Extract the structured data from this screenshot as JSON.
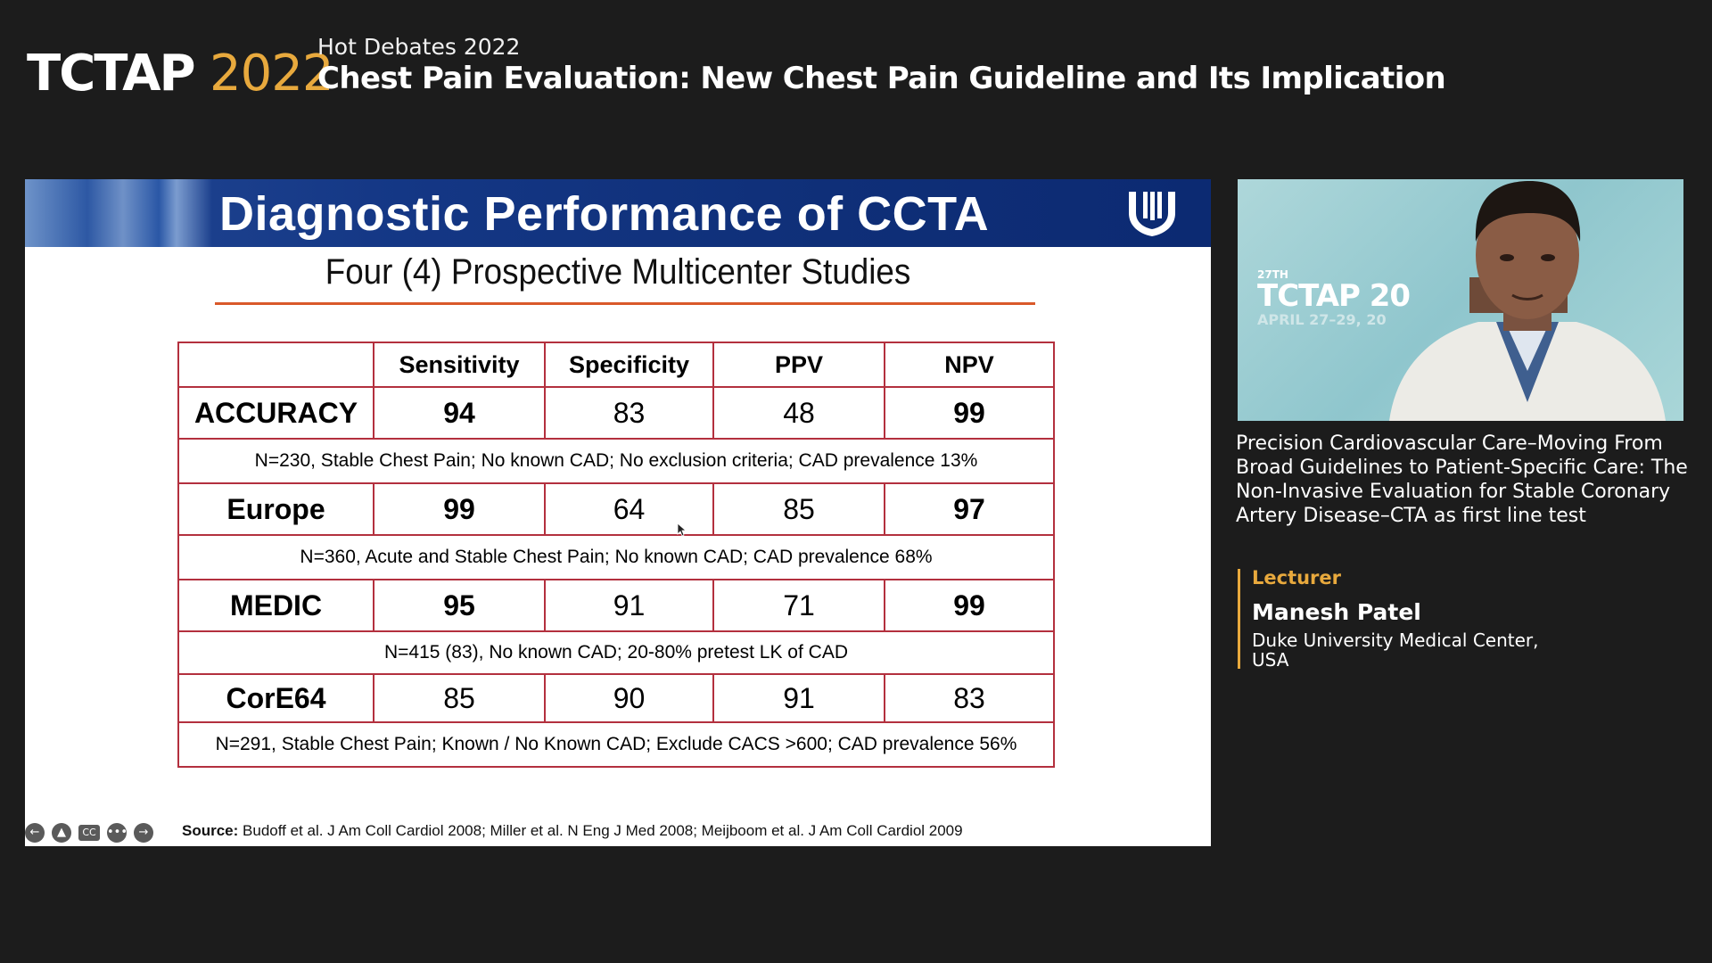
{
  "header": {
    "brand_name": "TCTAP",
    "brand_year": "2022",
    "session_kicker": "Hot Debates 2022",
    "session_title": "Chest Pain Evaluation: New Chest Pain Guideline and Its Implication"
  },
  "slide": {
    "title": "Diagnostic Performance of CCTA",
    "subtitle": "Four (4) Prospective Multicenter Studies",
    "columns": [
      "",
      "Sensitivity",
      "Specificity",
      "PPV",
      "NPV"
    ],
    "studies": [
      {
        "name": "ACCURACY",
        "values": [
          "94",
          "83",
          "48",
          "99"
        ],
        "note": "N=230, Stable Chest Pain; No known CAD; No exclusion criteria; CAD prevalence 13%"
      },
      {
        "name": "Europe",
        "values": [
          "99",
          "64",
          "85",
          "97"
        ],
        "note": "N=360, Acute and Stable Chest Pain; No known CAD; CAD prevalence 68%"
      },
      {
        "name": "MEDIC",
        "values": [
          "95",
          "91",
          "71",
          "99"
        ],
        "note": "N=415 (83), No known CAD; 20-80% pretest LK of CAD"
      },
      {
        "name": "CorE64",
        "values": [
          "85",
          "90",
          "91",
          "83"
        ],
        "note": "N=291, Stable Chest Pain; Known / No Known CAD; Exclude CACS >600; CAD prevalence 56%"
      }
    ],
    "source_label": "Source:",
    "source_text": " Budoff et al. J Am Coll Cardiol 2008; Miller et al. N Eng J Med 2008; Meijboom et al. J Am Coll Cardiol 2009",
    "controls": [
      "prev-icon",
      "upload-icon",
      "cc-icon",
      "more-icon",
      "next-icon"
    ],
    "control_glyphs": {
      "cc": "CC"
    }
  },
  "video": {
    "badge_small": "27TH",
    "badge_big": "TCTAP 20",
    "badge_date": "APRIL 27–29, 20"
  },
  "talk": {
    "title": "Precision Cardiovascular Care–Moving From Broad Guidelines to Patient-Specific Care: The Non-Invasive Evaluation for Stable Coronary Artery Disease–CTA as first line test",
    "lecturer_label": "Lecturer",
    "lecturer_name": "Manesh Patel",
    "lecturer_affiliation": "Duke University Medical Center, USA"
  },
  "colors": {
    "accent_gold": "#e8a93d",
    "background": "#1c1c1c",
    "banner_blue": "#0f2f78",
    "table_border": "#b3303e",
    "rule_orange": "#d9592a"
  }
}
